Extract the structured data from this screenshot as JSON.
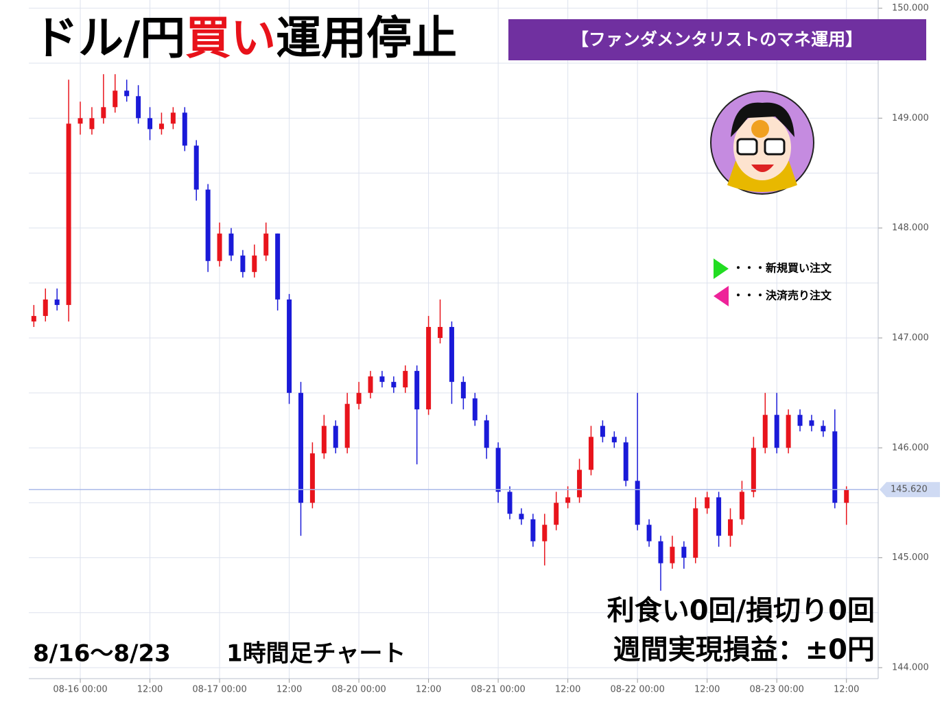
{
  "header": {
    "title_parts": [
      {
        "text": "ドル/円",
        "color": "#000000"
      },
      {
        "text": "買い",
        "color": "#e8121a"
      },
      {
        "text": "運用停止",
        "color": "#000000"
      }
    ],
    "banner": "【ファンダメンタリストのマネ運用】",
    "banner_color": "#7030a0"
  },
  "legend": [
    {
      "label": "・・・新規買い注文",
      "color": "#22dd22",
      "direction": "right"
    },
    {
      "label": "・・・決済売り注文",
      "color": "#ee2299",
      "direction": "left"
    }
  ],
  "summary": [
    "利食い0回/損切り0回",
    "週間実現損益：±0円"
  ],
  "period": "8/16〜8/23",
  "caption": "1時間足チャート",
  "chart_data": {
    "type": "candlestick",
    "up_color": "#e8141c",
    "down_color": "#1a1ad8",
    "grid": true,
    "categories": [
      null,
      null,
      null,
      null,
      "08-16 00:00",
      null,
      null,
      null,
      null,
      null,
      "12:00",
      null,
      null,
      null,
      null,
      null,
      "08-17 00:00",
      null,
      null,
      null,
      null,
      null,
      "12:00",
      null,
      null,
      null,
      null,
      null,
      "08-20 00:00",
      null,
      null,
      null,
      null,
      null,
      "12:00",
      null,
      null,
      null,
      null,
      null,
      "08-21 00:00",
      null,
      null,
      null,
      null,
      null,
      "12:00",
      null,
      null,
      null,
      null,
      null,
      "08-22 00:00",
      null,
      null,
      null,
      null,
      null,
      "12:00",
      null,
      null,
      null,
      null,
      null,
      "08-23 00:00",
      null,
      null,
      null,
      null,
      null,
      "12:00"
    ],
    "open": [
      147.15,
      147.2,
      147.35,
      147.3,
      148.95,
      148.9,
      149.0,
      149.1,
      149.25,
      149.2,
      149.0,
      148.9,
      148.95,
      149.05,
      148.75,
      148.35,
      147.7,
      147.95,
      147.75,
      147.6,
      147.75,
      147.95,
      147.35,
      146.5,
      145.5,
      145.95,
      146.2,
      146.0,
      146.4,
      146.5,
      146.65,
      146.6,
      146.55,
      146.7,
      146.35,
      147.0,
      147.1,
      146.6,
      146.45,
      146.25,
      146.0,
      145.6,
      145.4,
      145.35,
      145.15,
      145.3,
      145.5,
      145.55,
      145.8,
      146.2,
      146.1,
      146.05,
      145.7,
      145.3,
      145.15,
      144.95,
      145.1,
      145.0,
      145.45,
      145.55,
      145.2,
      145.35,
      145.6,
      146.0,
      146.3,
      146.0,
      146.3,
      146.25,
      146.2,
      146.15,
      145.5
    ],
    "high": [
      147.3,
      147.45,
      147.45,
      149.35,
      149.15,
      149.1,
      149.4,
      149.4,
      149.35,
      149.3,
      149.1,
      149.05,
      149.1,
      149.1,
      148.8,
      148.4,
      148.05,
      148.0,
      147.8,
      147.85,
      148.05,
      147.95,
      147.4,
      146.6,
      146.05,
      146.3,
      146.25,
      146.5,
      146.6,
      146.7,
      146.7,
      146.65,
      146.75,
      146.75,
      147.2,
      147.35,
      147.15,
      146.65,
      146.5,
      146.3,
      146.05,
      145.65,
      145.45,
      145.4,
      145.4,
      145.6,
      145.65,
      145.9,
      146.2,
      146.25,
      146.15,
      146.1,
      146.5,
      145.35,
      145.2,
      145.2,
      145.15,
      145.55,
      145.6,
      145.6,
      145.45,
      145.7,
      146.1,
      146.5,
      146.5,
      146.35,
      146.35,
      146.3,
      146.25,
      146.35,
      145.65
    ],
    "low": [
      147.1,
      147.15,
      147.25,
      147.15,
      148.85,
      148.85,
      148.95,
      149.05,
      149.15,
      148.95,
      148.8,
      148.85,
      148.9,
      148.7,
      148.25,
      147.6,
      147.65,
      147.7,
      147.55,
      147.55,
      147.7,
      147.25,
      146.4,
      145.2,
      145.45,
      145.9,
      145.95,
      145.95,
      146.35,
      146.45,
      146.55,
      146.5,
      146.5,
      145.85,
      146.3,
      146.95,
      146.4,
      146.35,
      146.2,
      145.9,
      145.5,
      145.35,
      145.3,
      145.1,
      144.93,
      145.25,
      145.45,
      145.5,
      145.75,
      146.05,
      146.0,
      145.65,
      145.25,
      145.1,
      144.7,
      144.9,
      144.9,
      144.95,
      145.4,
      145.1,
      145.1,
      145.3,
      145.55,
      145.95,
      145.95,
      145.95,
      146.15,
      146.15,
      146.1,
      145.45,
      145.3
    ],
    "close": [
      147.2,
      147.35,
      147.3,
      148.95,
      149.0,
      149.0,
      149.1,
      149.25,
      149.2,
      149.0,
      148.9,
      148.95,
      149.05,
      148.75,
      148.35,
      147.7,
      147.95,
      147.75,
      147.6,
      147.75,
      147.95,
      147.35,
      146.5,
      145.5,
      145.95,
      146.2,
      146.0,
      146.4,
      146.5,
      146.65,
      146.6,
      146.55,
      146.7,
      146.35,
      147.1,
      147.1,
      146.6,
      146.45,
      146.25,
      146.0,
      145.6,
      145.4,
      145.35,
      145.15,
      145.3,
      145.5,
      145.55,
      145.8,
      146.1,
      146.1,
      146.05,
      145.7,
      145.3,
      145.15,
      144.95,
      145.1,
      145.0,
      145.45,
      145.55,
      145.2,
      145.35,
      145.6,
      146.0,
      146.3,
      146.0,
      146.3,
      146.2,
      146.2,
      146.15,
      145.5,
      145.62
    ],
    "ylim": [
      143.9,
      150.075
    ],
    "yticks": [
      {
        "value": 144,
        "label": "144.000"
      },
      {
        "value": 145,
        "label": "145.000"
      },
      {
        "value": 146,
        "label": "146.000"
      },
      {
        "value": 147,
        "label": "147.000"
      },
      {
        "value": 148,
        "label": "148.000"
      },
      {
        "value": 149,
        "label": "149.000"
      },
      {
        "value": 150,
        "label": "150.000"
      }
    ],
    "y_minor_ticks": [
      144.5,
      145.5,
      146.5,
      147.5,
      148.5,
      149.5
    ],
    "current_price": {
      "value": 145.62,
      "label": "145.620"
    }
  }
}
